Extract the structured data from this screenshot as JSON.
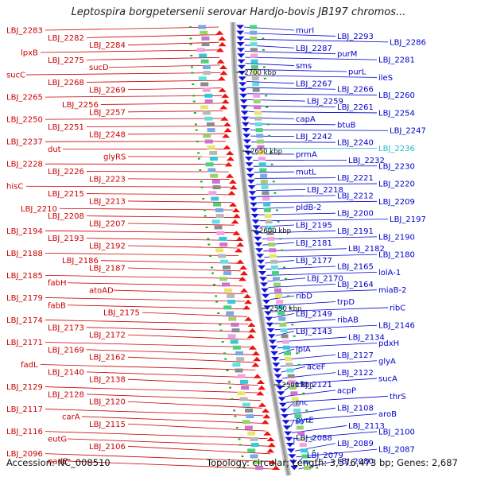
{
  "title": "Leptospira borgpetersenii serovar Hardjo-bovis JB197 chromos...",
  "footer": {
    "accession": "Accession: NC_008510",
    "summary": "Topology: circular; Length: 3,576,473 bp; Genes: 2,687"
  },
  "colors": {
    "left_labels": "#cc0000",
    "right_labels": "#0000cc",
    "highlight_label": "#22bbcc",
    "backbone": "#9a9a9a",
    "arrow_reverse": "#ee1111",
    "arrow_forward": "#1111dd"
  },
  "kbp_marks": [
    {
      "label": "2700 kbp"
    },
    {
      "label": "2650 kbp"
    },
    {
      "label": "2600 kbp"
    },
    {
      "label": "2550 kbp"
    },
    {
      "label": "2500 kbp"
    }
  ],
  "left_labels": [
    "LBJ_2283",
    "LBJ_2282",
    "LBJ_2284",
    "lpxB",
    "LBJ_2275",
    "sucD",
    "sucC",
    "LBJ_2268",
    "LBJ_2269",
    "LBJ_2265",
    "LBJ_2256",
    "LBJ_2257",
    "LBJ_2250",
    "LBJ_2251",
    "LBJ_2248",
    "LBJ_2237",
    "dut",
    "glyRS",
    "LBJ_2228",
    "LBJ_2226",
    "LBJ_2223",
    "hisC",
    "LBJ_2215",
    "LBJ_2213",
    "LBJ_2210",
    "LBJ_2208",
    "LBJ_2207",
    "LBJ_2194",
    "LBJ_2193",
    "LBJ_2192",
    "LBJ_2188",
    "LBJ_2186",
    "LBJ_2187",
    "LBJ_2185",
    "fabH",
    "atoAD",
    "LBJ_2179",
    "fabB",
    "LBJ_2175",
    "LBJ_2174",
    "LBJ_2173",
    "LBJ_2172",
    "LBJ_2171",
    "LBJ_2169",
    "LBJ_2162",
    "fadL",
    "LBJ_2140",
    "LBJ_2138",
    "LBJ_2129",
    "LBJ_2128",
    "LBJ_2120",
    "LBJ_2117",
    "carA",
    "LBJ_2115",
    "LBJ_2116",
    "eutG",
    "LBJ_2106",
    "LBJ_2096",
    "nadE"
  ],
  "right_labels": [
    "murI",
    "LBJ_2293",
    "LBJ_2286",
    "LBJ_2287",
    "purM",
    "LBJ_2281",
    "sms",
    "purL",
    "ileS",
    "LBJ_2267",
    "LBJ_2266",
    "LBJ_2260",
    "LBJ_2259",
    "LBJ_2261",
    "LBJ_2254",
    "capA",
    "btuB",
    "LBJ_2247",
    "LBJ_2242",
    "LBJ_2240",
    "LBJ_2236",
    "prmA",
    "LBJ_2232",
    "LBJ_2230",
    "mutL",
    "LBJ_2221",
    "LBJ_2220",
    "LBJ_2218",
    "LBJ_2212",
    "LBJ_2209",
    "pldB-2",
    "LBJ_2200",
    "LBJ_2197",
    "LBJ_2195",
    "LBJ_2191",
    "LBJ_2190",
    "LBJ_2181",
    "LBJ_2182",
    "LBJ_2180",
    "LBJ_2177",
    "LBJ_2165",
    "lolA-1",
    "LBJ_2170",
    "LBJ_2164",
    "miaB-2",
    "ribD",
    "trpD",
    "ribC",
    "LBJ_2149",
    "ribAB",
    "LBJ_2146",
    "LBJ_2143",
    "LBJ_2134",
    "pdxH",
    "lplA",
    "LBJ_2127",
    "glyA",
    "aceF",
    "LBJ_2122",
    "sucA",
    "LBJ_2121",
    "acpP",
    "thrS",
    "rnc",
    "LBJ_2108",
    "aroB",
    "pyrE",
    "LBJ_2113",
    "LBJ_2100",
    "LBJ_2088",
    "LBJ_2089",
    "LBJ_2087",
    "LBJ_2079",
    "LBJ_2080"
  ]
}
